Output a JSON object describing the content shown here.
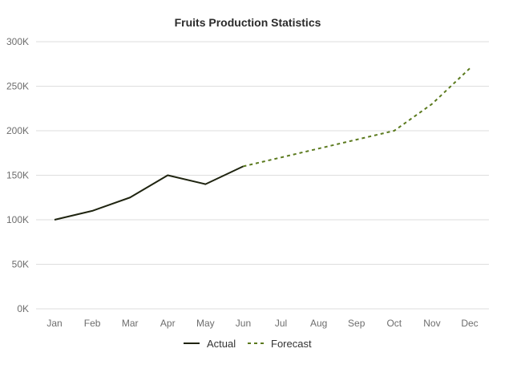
{
  "chart_data": {
    "type": "line",
    "title": "Fruits Production Statistics",
    "xlabel": "",
    "ylabel": "",
    "categories": [
      "Jan",
      "Feb",
      "Mar",
      "Apr",
      "May",
      "Jun",
      "Jul",
      "Aug",
      "Sep",
      "Oct",
      "Nov",
      "Dec"
    ],
    "y_ticks": [
      "0K",
      "50K",
      "100K",
      "150K",
      "200K",
      "250K",
      "300K"
    ],
    "y_tick_values": [
      0,
      50000,
      100000,
      150000,
      200000,
      250000,
      300000
    ],
    "ylim": [
      0,
      300000
    ],
    "grid": true,
    "legend_position": "bottom",
    "series": [
      {
        "name": "Actual",
        "style": "solid",
        "color": "#1f2410",
        "x": [
          "Jan",
          "Feb",
          "Mar",
          "Apr",
          "May",
          "Jun"
        ],
        "values": [
          100000,
          110000,
          125000,
          150000,
          140000,
          160000
        ]
      },
      {
        "name": "Forecast",
        "style": "dashed",
        "color": "#5b7a1e",
        "x": [
          "Jun",
          "Jul",
          "Aug",
          "Sep",
          "Oct",
          "Nov",
          "Dec"
        ],
        "values": [
          160000,
          170000,
          180000,
          190000,
          200000,
          230000,
          270000
        ]
      }
    ]
  }
}
